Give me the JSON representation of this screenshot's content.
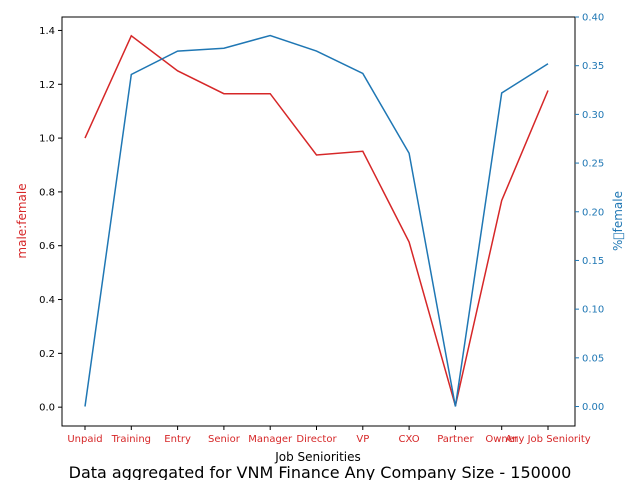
{
  "chart_data": {
    "type": "line",
    "title": "Data aggregated for VNM Finance Any Company Size - 150000",
    "xlabel": "Job Seniorities",
    "categories": [
      "Unpaid",
      "Training",
      "Entry",
      "Senior",
      "Manager",
      "Director",
      "VP",
      "CXO",
      "Partner",
      "Owner",
      "Any Job Seniority"
    ],
    "y_left": {
      "label": "male:female",
      "color": "#d62728",
      "range": [
        -0.07,
        1.45
      ],
      "ticks": [
        "0.0",
        "0.2",
        "0.4",
        "0.6",
        "0.8",
        "1.0",
        "1.2",
        "1.4"
      ]
    },
    "y_right": {
      "label": "%\u0000female",
      "color": "#1f77b4",
      "range": [
        -0.02,
        0.4
      ],
      "ticks": [
        "0.00",
        "0.05",
        "0.10",
        "0.15",
        "0.20",
        "0.25",
        "0.30",
        "0.35",
        "0.40"
      ]
    },
    "series": [
      {
        "axis": "left",
        "color": "#d62728",
        "values": [
          1.0,
          1.38,
          1.25,
          1.165,
          1.165,
          0.937,
          0.951,
          0.614,
          0.005,
          0.768,
          1.177
        ]
      },
      {
        "axis": "right",
        "color": "#1f77b4",
        "values": [
          0.0,
          0.341,
          0.365,
          0.368,
          0.381,
          0.365,
          0.342,
          0.26,
          0.0,
          0.322,
          0.352
        ]
      }
    ],
    "grid": false
  }
}
